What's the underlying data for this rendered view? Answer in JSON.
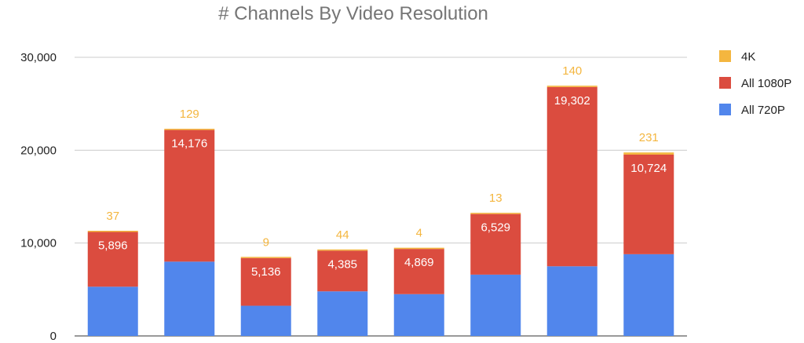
{
  "chart_data": {
    "type": "bar",
    "stacked": true,
    "title": "# Channels By Video Resolution",
    "xlabel": "",
    "ylabel": "",
    "ylim": [
      0,
      30000
    ],
    "yticks": [
      0,
      10000,
      20000,
      30000
    ],
    "ytick_labels": [
      "0",
      "10,000",
      "20,000",
      "30,000"
    ],
    "grid": true,
    "legend_position": "right",
    "categories": [
      "",
      "",
      "",
      "",
      "",
      "",
      "",
      ""
    ],
    "series": [
      {
        "name": "All 720P",
        "color": "#5186ec",
        "show_labels": false,
        "values": [
          5300,
          8000,
          3250,
          4800,
          4500,
          6600,
          7500,
          8800
        ]
      },
      {
        "name": "All 1080P",
        "color": "#db4c3f",
        "show_labels": true,
        "values": [
          5896,
          14176,
          5136,
          4385,
          4869,
          6529,
          19302,
          10724
        ],
        "labels": [
          "5,896",
          "14,176",
          "5,136",
          "4,385",
          "4,869",
          "6,529",
          "19,302",
          "10,724"
        ]
      },
      {
        "name": "4K",
        "color": "#f4b63f",
        "show_labels": true,
        "values": [
          37,
          129,
          9,
          44,
          4,
          13,
          140,
          231
        ],
        "labels": [
          "37",
          "129",
          "9",
          "44",
          "4",
          "13",
          "140",
          "231"
        ]
      }
    ],
    "legend_order": [
      "4K",
      "All 1080P",
      "All 720P"
    ]
  }
}
